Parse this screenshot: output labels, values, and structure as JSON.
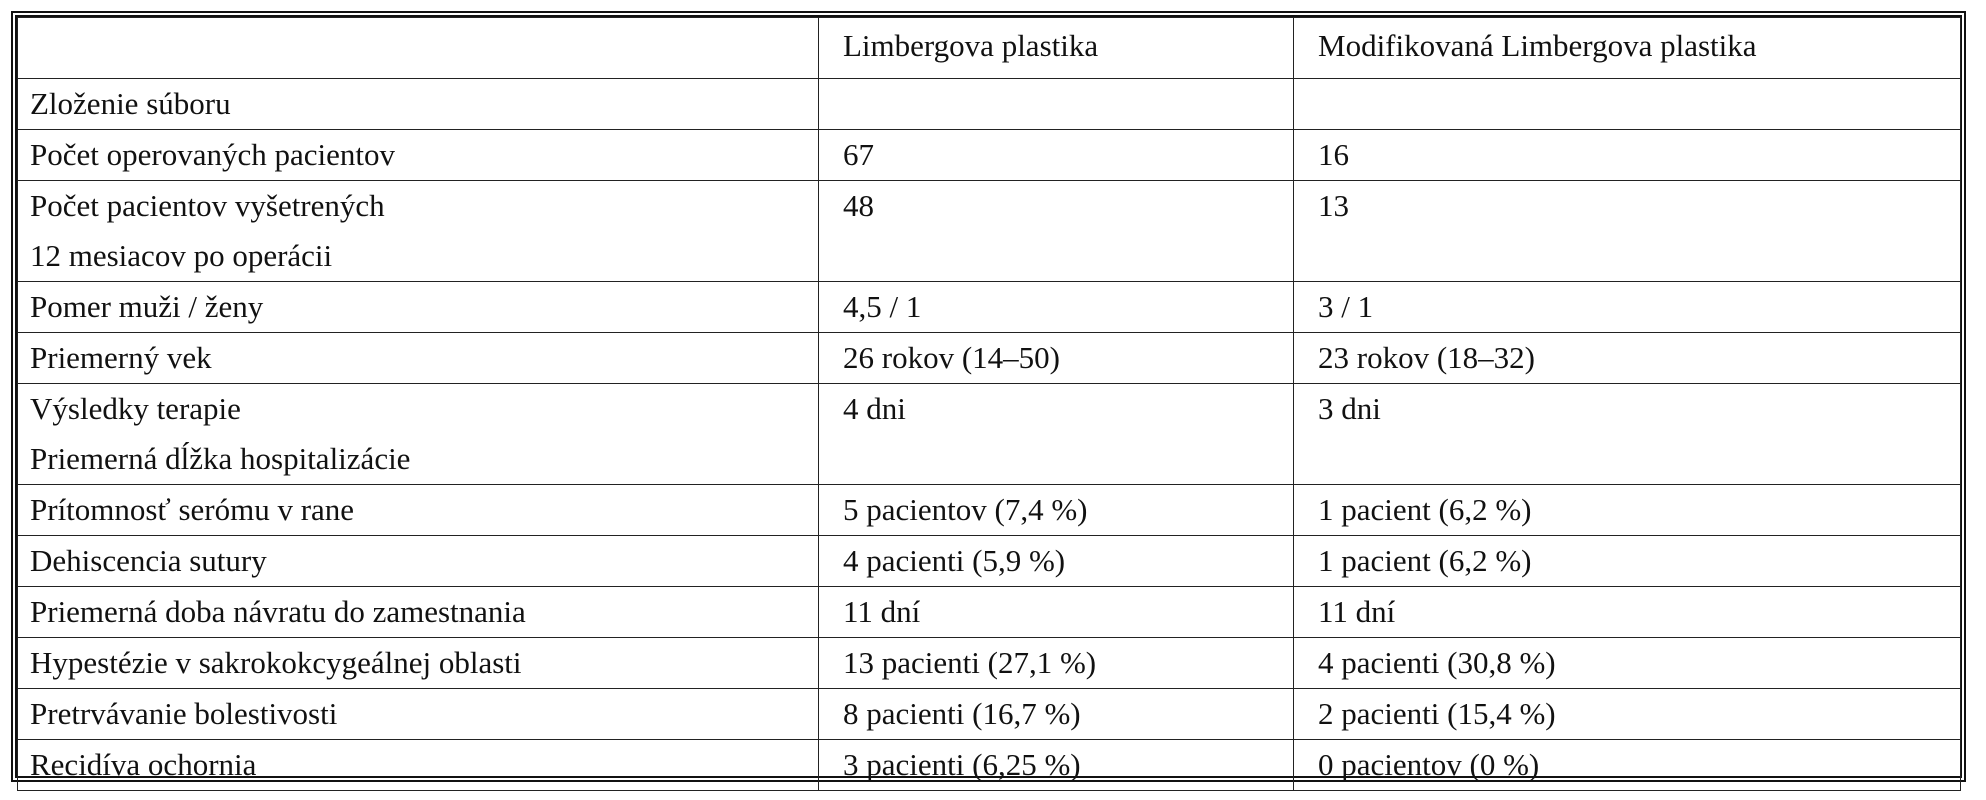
{
  "table": {
    "headers": [
      "",
      "Limbergova plastika",
      "Modifikovaná Limbergova plastika"
    ],
    "rows": [
      {
        "label": [
          "Zloženie súboru"
        ],
        "a": [
          ""
        ],
        "b": [
          ""
        ]
      },
      {
        "label": [
          "Počet operovaných pacientov"
        ],
        "a": [
          "67"
        ],
        "b": [
          "16"
        ]
      },
      {
        "label": [
          "Počet pacientov vyšetrených",
          "12 mesiacov po operácii"
        ],
        "a": [
          "48"
        ],
        "b": [
          "13"
        ]
      },
      {
        "label": [
          "Pomer muži / ženy"
        ],
        "a": [
          "4,5 / 1"
        ],
        "b": [
          "3 / 1"
        ]
      },
      {
        "label": [
          "Priemerný vek"
        ],
        "a": [
          "26 rokov (14–50)"
        ],
        "b": [
          "23 rokov (18–32)"
        ]
      },
      {
        "label": [
          "Výsledky terapie",
          "Priemerná dĺžka hospitalizácie"
        ],
        "a": [
          "4 dni"
        ],
        "b": [
          "3 dni"
        ]
      },
      {
        "label": [
          "Prítomnosť serómu v rane"
        ],
        "a": [
          "5 pacientov (7,4 %)"
        ],
        "b": [
          "1 pacient (6,2 %)"
        ]
      },
      {
        "label": [
          "Dehiscencia sutury"
        ],
        "a": [
          "4 pacienti (5,9 %)"
        ],
        "b": [
          "1 pacient (6,2 %)"
        ]
      },
      {
        "label": [
          "Priemerná doba návratu do zamestnania"
        ],
        "a": [
          "11 dní"
        ],
        "b": [
          "11 dní"
        ]
      },
      {
        "label": [
          "Hypestézie v sakrokokcygeálnej oblasti"
        ],
        "a": [
          "13 pacienti (27,1 %)"
        ],
        "b": [
          "4 pacienti (30,8 %)"
        ]
      },
      {
        "label": [
          "Pretrvávanie bolestivosti"
        ],
        "a": [
          "8 pacienti (16,7 %)"
        ],
        "b": [
          "2 pacienti (15,4 %)"
        ]
      },
      {
        "label": [
          "Recidíva ochornia"
        ],
        "a": [
          "3 pacienti (6,25 %)"
        ],
        "b": [
          "0 pacientov (0 %)"
        ]
      }
    ]
  }
}
